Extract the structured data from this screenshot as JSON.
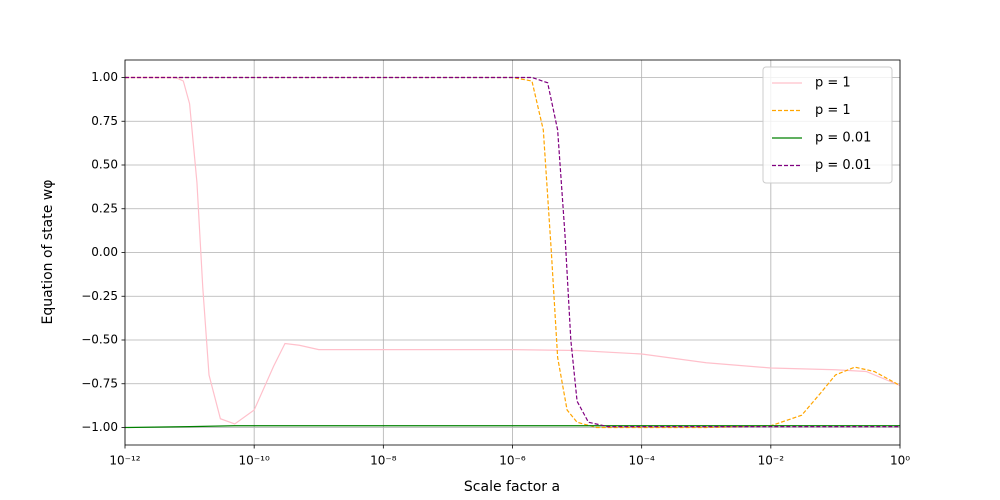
{
  "chart_data": {
    "type": "line",
    "xlabel": "Scale factor a",
    "ylabel": "Equation of state wφ",
    "xscale": "log",
    "grid": true,
    "legend": "upper right",
    "xlim": [
      1e-12,
      1
    ],
    "ylim": [
      -1.1,
      1.1
    ],
    "xticks": [
      {
        "value": 1e-12,
        "label": "10⁻¹²"
      },
      {
        "value": 1e-10,
        "label": "10⁻¹⁰"
      },
      {
        "value": 1e-08,
        "label": "10⁻⁸"
      },
      {
        "value": 1e-06,
        "label": "10⁻⁶"
      },
      {
        "value": 0.0001,
        "label": "10⁻⁴"
      },
      {
        "value": 0.01,
        "label": "10⁻²"
      },
      {
        "value": 1,
        "label": "10⁰"
      }
    ],
    "yticks": [
      {
        "value": 1,
        "label": "1.00"
      },
      {
        "value": 0.75,
        "label": "0.75"
      },
      {
        "value": 0.5,
        "label": "0.50"
      },
      {
        "value": 0.25,
        "label": "0.25"
      },
      {
        "value": 0,
        "label": "0.00"
      },
      {
        "value": -0.25,
        "label": "−0.25"
      },
      {
        "value": -0.5,
        "label": "−0.50"
      },
      {
        "value": -0.75,
        "label": "−0.75"
      },
      {
        "value": -1,
        "label": "−1.00"
      }
    ],
    "series": [
      {
        "name": "p = 1",
        "color": "pink",
        "dash": false,
        "x": [
          1e-12,
          3e-12,
          6e-12,
          8e-12,
          1e-11,
          1.3e-11,
          1.6e-11,
          2e-11,
          3e-11,
          5e-11,
          1e-10,
          2e-10,
          3e-10,
          5e-10,
          1e-09,
          1e-08,
          1e-06,
          1e-05,
          0.0001,
          0.001,
          0.01,
          0.1,
          0.3,
          1
        ],
        "values": [
          1.0,
          1.0,
          1.0,
          0.98,
          0.85,
          0.4,
          -0.2,
          -0.7,
          -0.95,
          -0.98,
          -0.9,
          -0.65,
          -0.52,
          -0.53,
          -0.555,
          -0.555,
          -0.555,
          -0.56,
          -0.58,
          -0.63,
          -0.66,
          -0.67,
          -0.68,
          -0.76
        ]
      },
      {
        "name": "p = 1",
        "color": "orange",
        "dash": true,
        "x": [
          1e-12,
          1e-06,
          2e-06,
          3e-06,
          4e-06,
          5e-06,
          7e-06,
          1e-05,
          2e-05,
          0.001,
          0.01,
          0.03,
          0.06,
          0.1,
          0.2,
          0.4,
          1
        ],
        "values": [
          1.0,
          1.0,
          0.98,
          0.7,
          0.0,
          -0.6,
          -0.9,
          -0.97,
          -1.0,
          -1.0,
          -0.99,
          -0.93,
          -0.8,
          -0.7,
          -0.655,
          -0.68,
          -0.76
        ]
      },
      {
        "name": "p = 0.01",
        "color": "green",
        "dash": false,
        "x": [
          1e-12,
          1e-11,
          5e-11,
          1
        ],
        "values": [
          -1.0,
          -0.995,
          -0.99,
          -0.99
        ]
      },
      {
        "name": "p = 0.01",
        "color": "purple",
        "dash": true,
        "x": [
          1e-12,
          2e-06,
          3.5e-06,
          5e-06,
          6.5e-06,
          8e-06,
          1e-05,
          1.5e-05,
          3e-05,
          1
        ],
        "values": [
          1.0,
          1.0,
          0.97,
          0.7,
          0.1,
          -0.5,
          -0.85,
          -0.97,
          -0.995,
          -0.995
        ]
      }
    ]
  }
}
